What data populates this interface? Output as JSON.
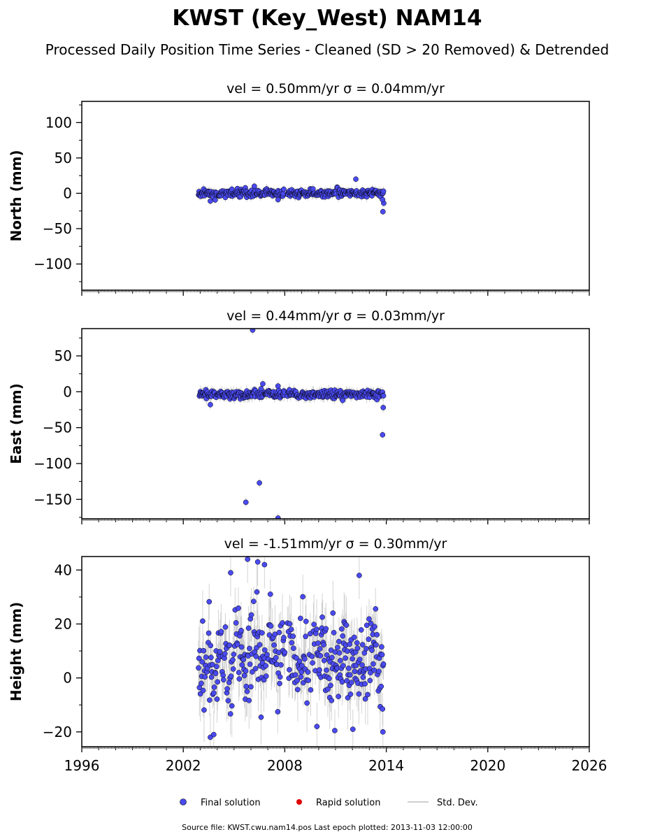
{
  "title": "KWST (Key_West) NAM14",
  "subtitle": "Processed Daily Position Time Series - Cleaned (SD > 20 Removed) & Detrended",
  "x_tick_labels": [
    "1996",
    "2002",
    "2008",
    "2014",
    "2020",
    "2026"
  ],
  "legend": {
    "final": "Final solution",
    "rapid": "Rapid solution",
    "std": "Std. Dev."
  },
  "footer": "Source file: KWST.cwu.nam14.pos  Last epoch plotted: 2013-11-03 12:00:00",
  "colors": {
    "final": "#4a4af0",
    "rapid": "#e00000",
    "std": "#b0b0b0",
    "edge": "#000000"
  },
  "chart_data": [
    {
      "type": "scatter",
      "panel_title": "vel = 0.50mm/yr   σ = 0.04mm/yr",
      "ylabel": "North (mm)",
      "xlim": [
        1996,
        2026
      ],
      "ylim": [
        -137,
        130
      ],
      "y_ticks": [
        100,
        50,
        0,
        -50,
        -100
      ],
      "data_span": [
        2002.9,
        2013.84
      ],
      "gap": [
        2008.0,
        2008.15
      ],
      "scatter_sd": 2.5,
      "err_half": 5,
      "seed": 11,
      "outliers": [
        [
          2012.2,
          20
        ],
        [
          2013.8,
          -26
        ],
        [
          2013.85,
          -14
        ],
        [
          2013.78,
          -9
        ],
        [
          2003.6,
          -11
        ],
        [
          2007.6,
          -9
        ],
        [
          2006.2,
          10
        ]
      ]
    },
    {
      "type": "scatter",
      "panel_title": "vel = 0.44mm/yr   σ = 0.03mm/yr",
      "ylabel": "East (mm)",
      "xlim": [
        1996,
        2026
      ],
      "ylim": [
        -177,
        88
      ],
      "y_ticks": [
        50,
        0,
        -50,
        -100,
        -150
      ],
      "data_span": [
        2002.9,
        2013.84
      ],
      "gap": [
        2008.0,
        2008.15
      ],
      "scatter_sd": 2.8,
      "err_half": 6,
      "seed": 23,
      "outliers": [
        [
          2006.1,
          86
        ],
        [
          2005.7,
          -154
        ],
        [
          2006.5,
          -127
        ],
        [
          2007.6,
          -176
        ],
        [
          2013.78,
          -60
        ],
        [
          2013.82,
          -22
        ],
        [
          2006.7,
          11
        ],
        [
          2007.6,
          8
        ],
        [
          2003.6,
          -18
        ]
      ]
    },
    {
      "type": "scatter",
      "panel_title": "vel = -1.51mm/yr   σ = 0.30mm/yr",
      "ylabel": "Height (mm)",
      "xlim": [
        1996,
        2026
      ],
      "ylim": [
        -25.5,
        45
      ],
      "y_ticks": [
        40,
        20,
        0,
        -20
      ],
      "data_span": [
        2002.9,
        2013.84
      ],
      "gap": [
        2008.0,
        2008.15
      ],
      "scatter_sd": 8.0,
      "err_half": 8,
      "seed": 37,
      "outliers": [
        [
          2005.8,
          44
        ],
        [
          2006.4,
          43
        ],
        [
          2012.4,
          38
        ],
        [
          2004.8,
          39
        ],
        [
          2009.9,
          -18
        ],
        [
          2003.6,
          -22
        ],
        [
          2003.8,
          -21
        ],
        [
          2013.8,
          -20
        ],
        [
          2006.8,
          42
        ]
      ]
    }
  ]
}
